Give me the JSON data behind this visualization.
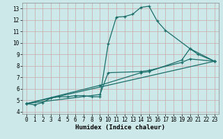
{
  "xlabel": "Humidex (Indice chaleur)",
  "background_color": "#cce8e8",
  "grid_color": "#c8a8a8",
  "line_color": "#1a6e6a",
  "xlim": [
    -0.5,
    23.5
  ],
  "ylim": [
    3.8,
    13.5
  ],
  "xticks": [
    0,
    1,
    2,
    3,
    4,
    5,
    6,
    7,
    8,
    9,
    10,
    11,
    12,
    13,
    14,
    15,
    16,
    17,
    18,
    19,
    20,
    21,
    22,
    23
  ],
  "yticks": [
    4,
    5,
    6,
    7,
    8,
    9,
    10,
    11,
    12,
    13
  ],
  "series": [
    {
      "x": [
        0,
        1,
        2,
        3,
        4,
        5,
        6,
        7,
        8,
        9,
        10,
        11,
        12,
        13,
        14,
        15,
        16,
        17,
        20,
        21,
        23
      ],
      "y": [
        4.7,
        4.6,
        4.8,
        5.2,
        5.3,
        5.3,
        5.4,
        5.4,
        5.3,
        5.3,
        9.9,
        12.25,
        12.3,
        12.5,
        13.1,
        13.2,
        11.9,
        11.1,
        9.5,
        9.0,
        8.4
      ]
    },
    {
      "x": [
        0,
        23
      ],
      "y": [
        4.7,
        8.4
      ]
    },
    {
      "x": [
        0,
        9,
        10,
        14,
        15,
        19,
        20,
        23
      ],
      "y": [
        4.7,
        5.5,
        7.4,
        7.5,
        7.6,
        8.3,
        8.6,
        8.4
      ]
    },
    {
      "x": [
        0,
        9,
        14,
        15,
        19,
        20,
        23
      ],
      "y": [
        4.7,
        6.3,
        7.4,
        7.5,
        8.5,
        9.5,
        8.4
      ]
    }
  ]
}
